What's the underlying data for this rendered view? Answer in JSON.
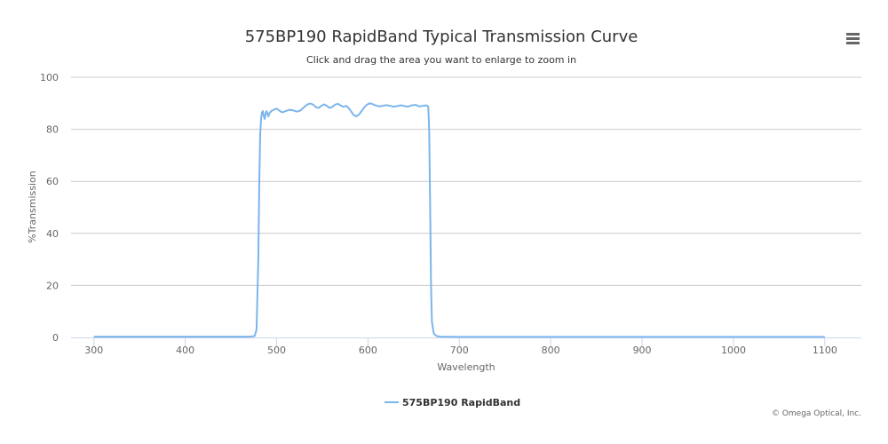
{
  "chart_data": {
    "type": "line",
    "title": "575BP190 RapidBand Typical Transmission Curve",
    "subtitle": "Click and drag the area you want to enlarge to zoom in",
    "xlabel": "Wavelength",
    "ylabel": "%Transmission",
    "xlim": [
      275,
      1140
    ],
    "ylim": [
      0,
      100
    ],
    "x_ticks": [
      300,
      400,
      500,
      600,
      700,
      800,
      900,
      1000,
      1100
    ],
    "y_ticks": [
      0,
      20,
      40,
      60,
      80,
      100
    ],
    "grid": "horizontal",
    "legend_position": "bottom-center",
    "series": [
      {
        "name": "575BP190 RapidBand",
        "color": "#7cb5ec",
        "points": [
          [
            300,
            0.3
          ],
          [
            350,
            0.3
          ],
          [
            400,
            0.3
          ],
          [
            450,
            0.3
          ],
          [
            470,
            0.3
          ],
          [
            476,
            0.5
          ],
          [
            478,
            3
          ],
          [
            480,
            30
          ],
          [
            481,
            60
          ],
          [
            482,
            78
          ],
          [
            483,
            84
          ],
          [
            484,
            86.5
          ],
          [
            485,
            87
          ],
          [
            486,
            85
          ],
          [
            487,
            84
          ],
          [
            488,
            86
          ],
          [
            489,
            87
          ],
          [
            490,
            86.2
          ],
          [
            491,
            85
          ],
          [
            492,
            86
          ],
          [
            494,
            87
          ],
          [
            497,
            87.5
          ],
          [
            500,
            88
          ],
          [
            503,
            87.2
          ],
          [
            506,
            86.5
          ],
          [
            510,
            87
          ],
          [
            514,
            87.5
          ],
          [
            518,
            87.3
          ],
          [
            522,
            86.8
          ],
          [
            526,
            87.2
          ],
          [
            530,
            88.5
          ],
          [
            534,
            89.6
          ],
          [
            537,
            89.9
          ],
          [
            540,
            89.5
          ],
          [
            543,
            88.5
          ],
          [
            546,
            88.2
          ],
          [
            549,
            89
          ],
          [
            552,
            89.6
          ],
          [
            555,
            89
          ],
          [
            558,
            88.2
          ],
          [
            561,
            88.6
          ],
          [
            564,
            89.5
          ],
          [
            567,
            89.8
          ],
          [
            570,
            89.2
          ],
          [
            573,
            88.6
          ],
          [
            576,
            89
          ],
          [
            578,
            88.5
          ],
          [
            581,
            87.2
          ],
          [
            584,
            85.6
          ],
          [
            587,
            85
          ],
          [
            590,
            85.6
          ],
          [
            593,
            87
          ],
          [
            596,
            88.5
          ],
          [
            599,
            89.5
          ],
          [
            602,
            90
          ],
          [
            605,
            89.7
          ],
          [
            608,
            89.2
          ],
          [
            612,
            88.8
          ],
          [
            616,
            89
          ],
          [
            620,
            89.3
          ],
          [
            624,
            89
          ],
          [
            628,
            88.7
          ],
          [
            632,
            88.9
          ],
          [
            636,
            89.2
          ],
          [
            640,
            88.9
          ],
          [
            644,
            88.7
          ],
          [
            648,
            89.2
          ],
          [
            652,
            89.4
          ],
          [
            656,
            88.8
          ],
          [
            660,
            89
          ],
          [
            664,
            89.2
          ],
          [
            666,
            88.7
          ],
          [
            667,
            80
          ],
          [
            668,
            50
          ],
          [
            669,
            20
          ],
          [
            670,
            6
          ],
          [
            672,
            1.5
          ],
          [
            675,
            0.5
          ],
          [
            680,
            0.3
          ],
          [
            700,
            0.2
          ],
          [
            750,
            0.2
          ],
          [
            800,
            0.2
          ],
          [
            850,
            0.2
          ],
          [
            900,
            0.2
          ],
          [
            950,
            0.2
          ],
          [
            1000,
            0.2
          ],
          [
            1050,
            0.2
          ],
          [
            1100,
            0.2
          ]
        ]
      }
    ]
  },
  "credit": "© Omega Optical, Inc.",
  "menu_icon": "hamburger-menu-icon"
}
